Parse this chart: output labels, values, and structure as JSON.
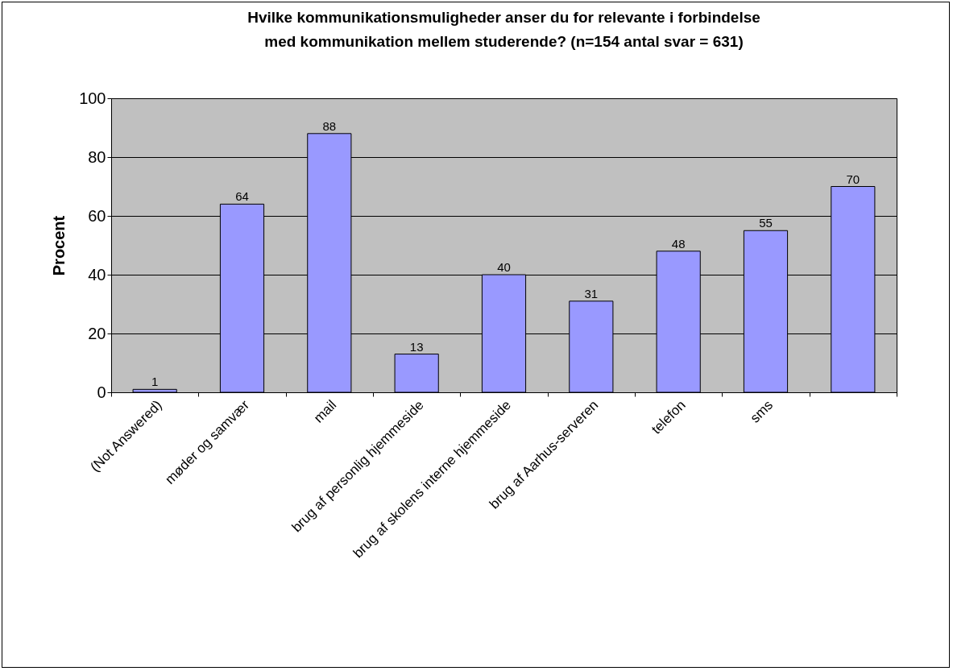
{
  "chart_data": {
    "type": "bar",
    "title": "Hvilke kommunikationsmuligheder anser du for relevante i forbindelse med kommunikation mellem studerende? (n=154 antal svar = 631)",
    "ylabel": "Procent",
    "categories": [
      "(Not Answered)",
      "møder og samvær",
      "mail",
      "brug af personlig hjemmeside",
      "brug af skolens interne hjemmeside",
      "brug af Aarhus-serveren",
      "telefon",
      "sms",
      null
    ],
    "values": [
      1,
      64,
      88,
      13,
      40,
      31,
      48,
      55,
      70
    ],
    "color": "#9999ff",
    "ylim": [
      0,
      100
    ],
    "yticks": [
      0,
      20,
      40,
      60,
      80,
      100
    ],
    "grid": "y",
    "data_labels": true
  }
}
